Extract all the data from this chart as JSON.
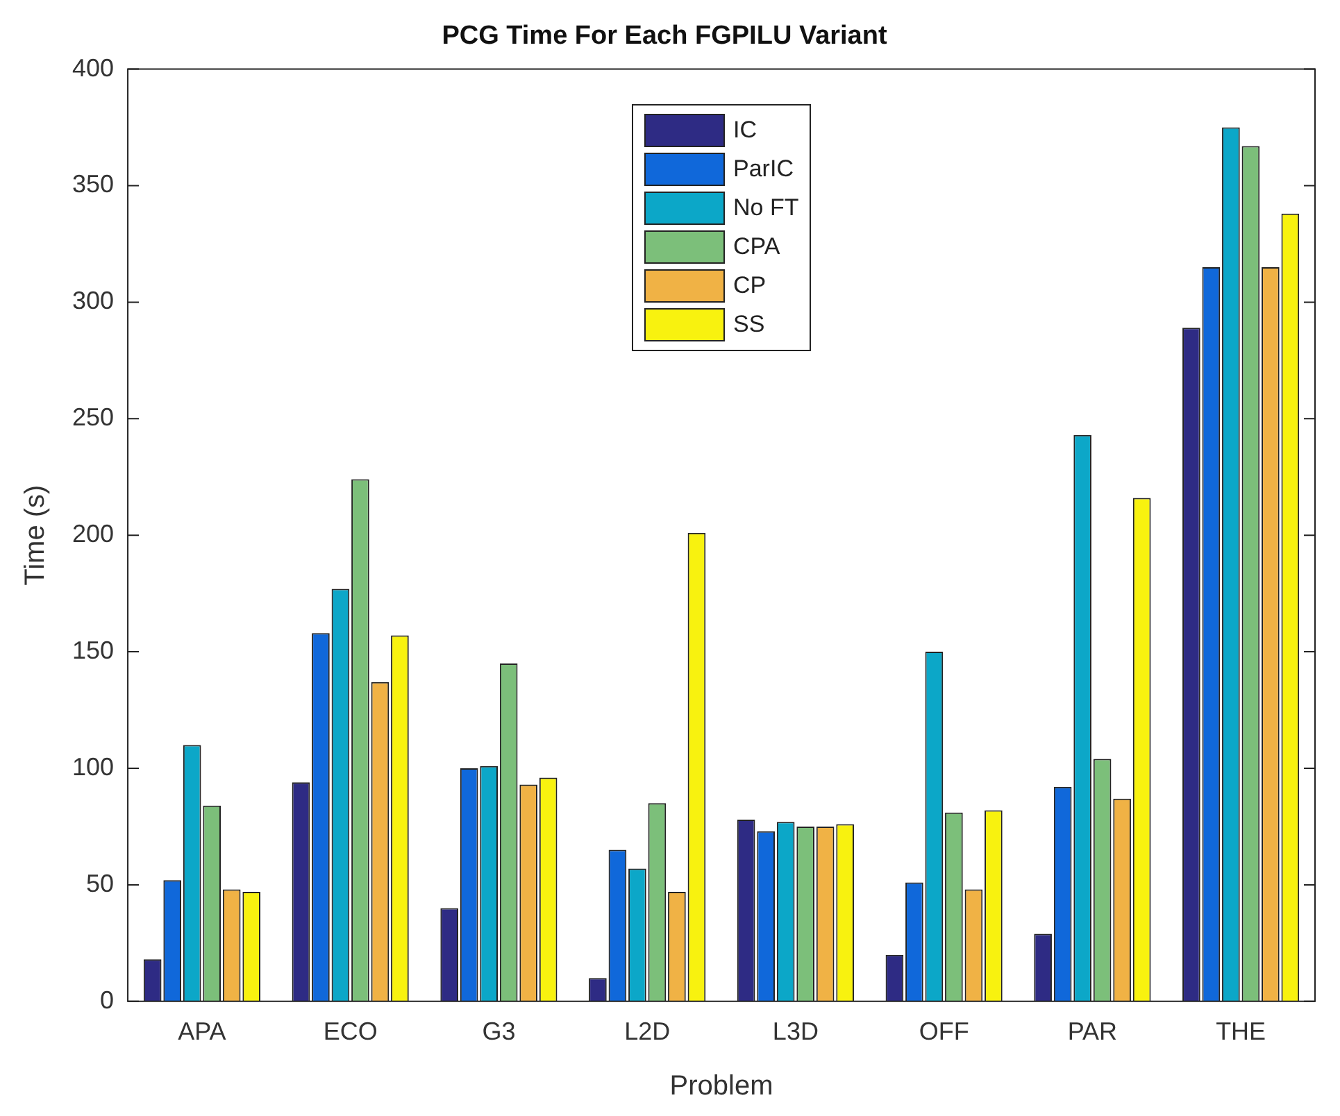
{
  "chart_data": {
    "type": "bar",
    "title": "PCG Time For Each FGPILU Variant",
    "xlabel": "Problem",
    "ylabel": "Time (s)",
    "categories": [
      "APA",
      "ECO",
      "G3",
      "L2D",
      "L3D",
      "OFF",
      "PAR",
      "THE"
    ],
    "series": [
      {
        "name": "IC",
        "color": "#2e2b84",
        "values": [
          18,
          94,
          40,
          10,
          78,
          20,
          29,
          289
        ]
      },
      {
        "name": "ParIC",
        "color": "#1068da",
        "values": [
          52,
          158,
          100,
          65,
          73,
          51,
          92,
          315
        ]
      },
      {
        "name": "No FT",
        "color": "#0ca7c8",
        "values": [
          110,
          177,
          101,
          57,
          77,
          150,
          243,
          375
        ]
      },
      {
        "name": "CPA",
        "color": "#7cbf7a",
        "values": [
          84,
          224,
          145,
          85,
          75,
          81,
          104,
          367
        ]
      },
      {
        "name": "CP",
        "color": "#f0b245",
        "values": [
          48,
          137,
          93,
          47,
          75,
          48,
          87,
          315
        ]
      },
      {
        "name": "SS",
        "color": "#f8f20f",
        "values": [
          47,
          157,
          96,
          201,
          76,
          82,
          216,
          338
        ]
      }
    ],
    "ylim": [
      0,
      400
    ],
    "yticks": [
      0,
      50,
      100,
      150,
      200,
      250,
      300,
      350,
      400
    ],
    "grid": false,
    "legend": "top"
  }
}
